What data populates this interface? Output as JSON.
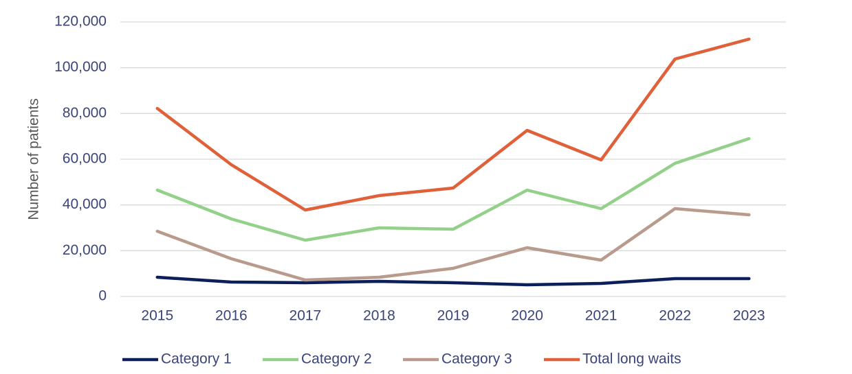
{
  "chart_data": {
    "type": "line",
    "y_label": "Number of patients",
    "categories": [
      "2015",
      "2016",
      "2017",
      "2018",
      "2019",
      "2020",
      "2021",
      "2022",
      "2023"
    ],
    "series": [
      {
        "name": "Category 1",
        "color": "#0c1f5b",
        "values": [
          8400,
          6300,
          6000,
          6600,
          6000,
          5100,
          5700,
          7800,
          7800
        ]
      },
      {
        "name": "Category 2",
        "color": "#93d08a",
        "values": [
          46500,
          33900,
          24600,
          30000,
          29400,
          46500,
          38400,
          58200,
          69000
        ]
      },
      {
        "name": "Category 3",
        "color": "#b89b8c",
        "values": [
          28500,
          16500,
          7200,
          8400,
          12300,
          21300,
          15900,
          38400,
          35700
        ]
      },
      {
        "name": "Total long waits",
        "color": "#df6039",
        "values": [
          82200,
          57600,
          37800,
          44100,
          47400,
          72600,
          59700,
          103800,
          112500
        ]
      }
    ],
    "ylim": [
      0,
      120000
    ],
    "yticks": [
      0,
      {
        "value": 20000,
        "label": "20,000"
      },
      {
        "value": 40000,
        "label": "40,000"
      },
      {
        "value": 60000,
        "label": "60,000"
      },
      {
        "value": 80000,
        "label": "80,000"
      },
      {
        "value": 100000,
        "label": "100,000"
      },
      {
        "value": 120000,
        "label": "120,000"
      }
    ],
    "grid": true,
    "legend": "bottom"
  }
}
